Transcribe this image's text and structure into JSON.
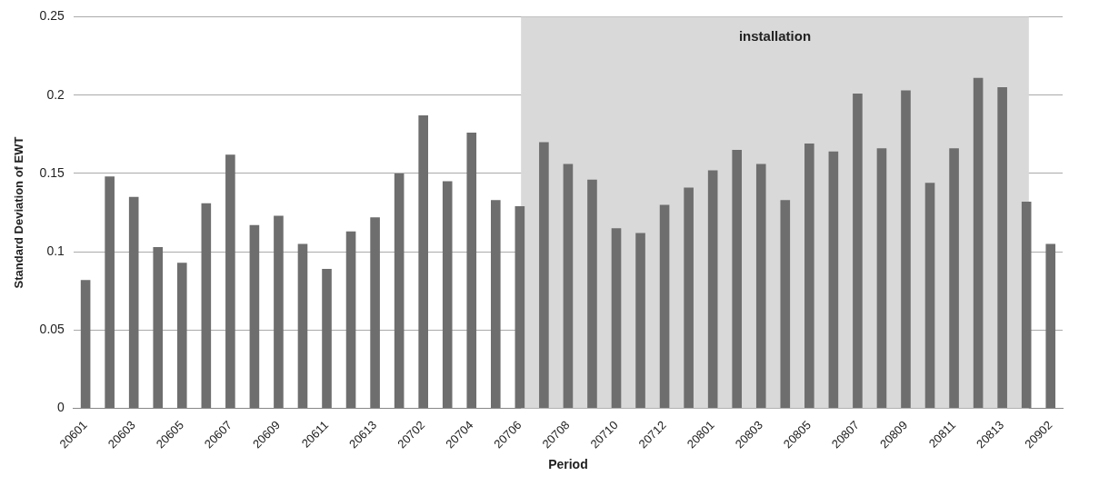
{
  "chart_data": {
    "type": "bar",
    "xlabel": "Period",
    "ylabel": "Standard Deviation of EWT",
    "categories": [
      "20601",
      null,
      "20603",
      null,
      "20605",
      null,
      "20607",
      null,
      "20609",
      null,
      "20611",
      null,
      "20613",
      null,
      "20702",
      null,
      "20704",
      null,
      "20706",
      null,
      "20708",
      null,
      "20710",
      null,
      "20712",
      null,
      "20801",
      null,
      "20803",
      null,
      "20805",
      null,
      "20807",
      null,
      "20809",
      null,
      "20811",
      null,
      "20813",
      null,
      "20902"
    ],
    "values": [
      0.082,
      0.148,
      0.135,
      0.103,
      0.093,
      0.131,
      0.162,
      0.117,
      0.123,
      0.105,
      0.089,
      0.113,
      0.122,
      0.15,
      0.187,
      0.145,
      0.176,
      0.133,
      0.129,
      0.17,
      0.156,
      0.146,
      0.115,
      0.112,
      0.13,
      0.141,
      0.152,
      0.165,
      0.156,
      0.133,
      0.169,
      0.164,
      0.201,
      0.166,
      0.203,
      0.144,
      0.166,
      0.211,
      0.205,
      0.132,
      0.105
    ],
    "color": "#6e6e6e",
    "ylim": [
      0,
      0.25
    ],
    "yticks": [
      0,
      0.05,
      0.1,
      0.15,
      0.2,
      0.25
    ],
    "grid": "y",
    "bands": [
      {
        "axis": "x",
        "from": "20706",
        "to": "20902",
        "label": "installation",
        "color": "#d9d9d9"
      }
    ]
  }
}
